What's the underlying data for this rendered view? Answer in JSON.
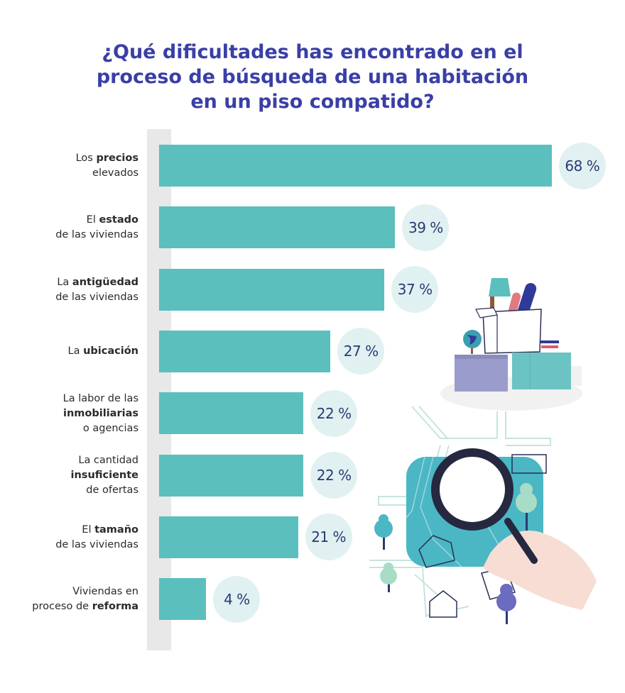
{
  "title_lines": [
    "¿Qué dificultades has encontrado en el",
    "proceso de búsqueda de una habitación",
    "en un piso compatido?"
  ],
  "chart_data": {
    "type": "bar",
    "orientation": "horizontal",
    "title": "¿Qué dificultades has encontrado en el proceso de búsqueda de una habitación en un piso compatido?",
    "categories": [
      "Los precios elevados",
      "El estado de las viviendas",
      "La antigüedad de las viviendas",
      "La ubicación",
      "La labor de las inmobiliarias o agencias",
      "La cantidad insuficiente de ofertas",
      "El tamaño de las viviendas",
      "Viviendas en proceso de reforma"
    ],
    "values": [
      68,
      39,
      37,
      27,
      22,
      22,
      21,
      4
    ],
    "value_labels": [
      "68 %",
      "39 %",
      "37 %",
      "27 %",
      "22 %",
      "22 %",
      "21 %",
      "4 %"
    ],
    "unit": "%",
    "grid": false,
    "colors": {
      "bar": "#5bbfbd",
      "bubble": "#e1f1f1",
      "value_text": "#2d3875",
      "title": "#3a3fa6",
      "axis": "#e8e8e8"
    },
    "label_lines": [
      [
        [
          {
            "t": "Los ",
            "b": false
          },
          {
            "t": "precios",
            "b": true
          }
        ],
        [
          {
            "t": "elevados",
            "b": false
          }
        ]
      ],
      [
        [
          {
            "t": "El ",
            "b": false
          },
          {
            "t": "estado",
            "b": true
          }
        ],
        [
          {
            "t": "de las viviendas",
            "b": false
          }
        ]
      ],
      [
        [
          {
            "t": "La ",
            "b": false
          },
          {
            "t": "antigüedad",
            "b": true
          }
        ],
        [
          {
            "t": "de las viviendas",
            "b": false
          }
        ]
      ],
      [
        [
          {
            "t": "La ",
            "b": false
          },
          {
            "t": "ubicación",
            "b": true
          }
        ]
      ],
      [
        [
          {
            "t": "La labor de las",
            "b": false
          }
        ],
        [
          {
            "t": "inmobiliarias",
            "b": true
          }
        ],
        [
          {
            "t": "o agencias",
            "b": false
          }
        ]
      ],
      [
        [
          {
            "t": "La cantidad",
            "b": false
          }
        ],
        [
          {
            "t": "insuficiente",
            "b": true
          }
        ],
        [
          {
            "t": "de ofertas",
            "b": false
          }
        ]
      ],
      [
        [
          {
            "t": "El ",
            "b": false
          },
          {
            "t": "tamaño",
            "b": true
          }
        ],
        [
          {
            "t": "de las viviendas",
            "b": false
          }
        ]
      ],
      [
        [
          {
            "t": "Viviendas en",
            "b": false
          }
        ],
        [
          {
            "t": "proceso de ",
            "b": false
          },
          {
            "t": "reforma",
            "b": true
          }
        ]
      ]
    ]
  },
  "illustrations": [
    "moving-boxes-illustration",
    "map-magnifier-illustration"
  ]
}
